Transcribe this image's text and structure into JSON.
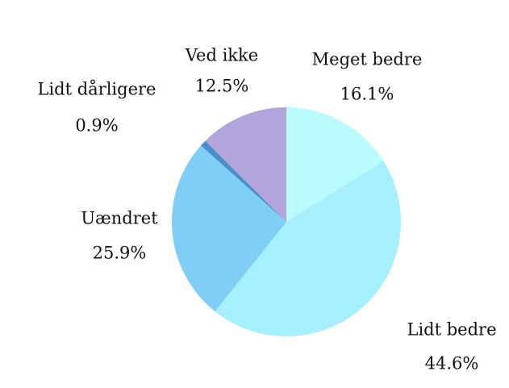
{
  "chart_data": {
    "type": "pie",
    "categories": [
      "Meget bedre",
      "Lidt bedre",
      "Uændret",
      "Lidt dårligere",
      "Ved ikke"
    ],
    "values": [
      16.1,
      44.6,
      25.9,
      0.9,
      12.5
    ],
    "value_labels": [
      "16.1%",
      "44.6%",
      "25.9%",
      "0.9%",
      "12.5%"
    ],
    "colors": [
      "#bafbfd",
      "#a6effc",
      "#80cdf5",
      "#4b8fc9",
      "#b4a4dc"
    ]
  }
}
